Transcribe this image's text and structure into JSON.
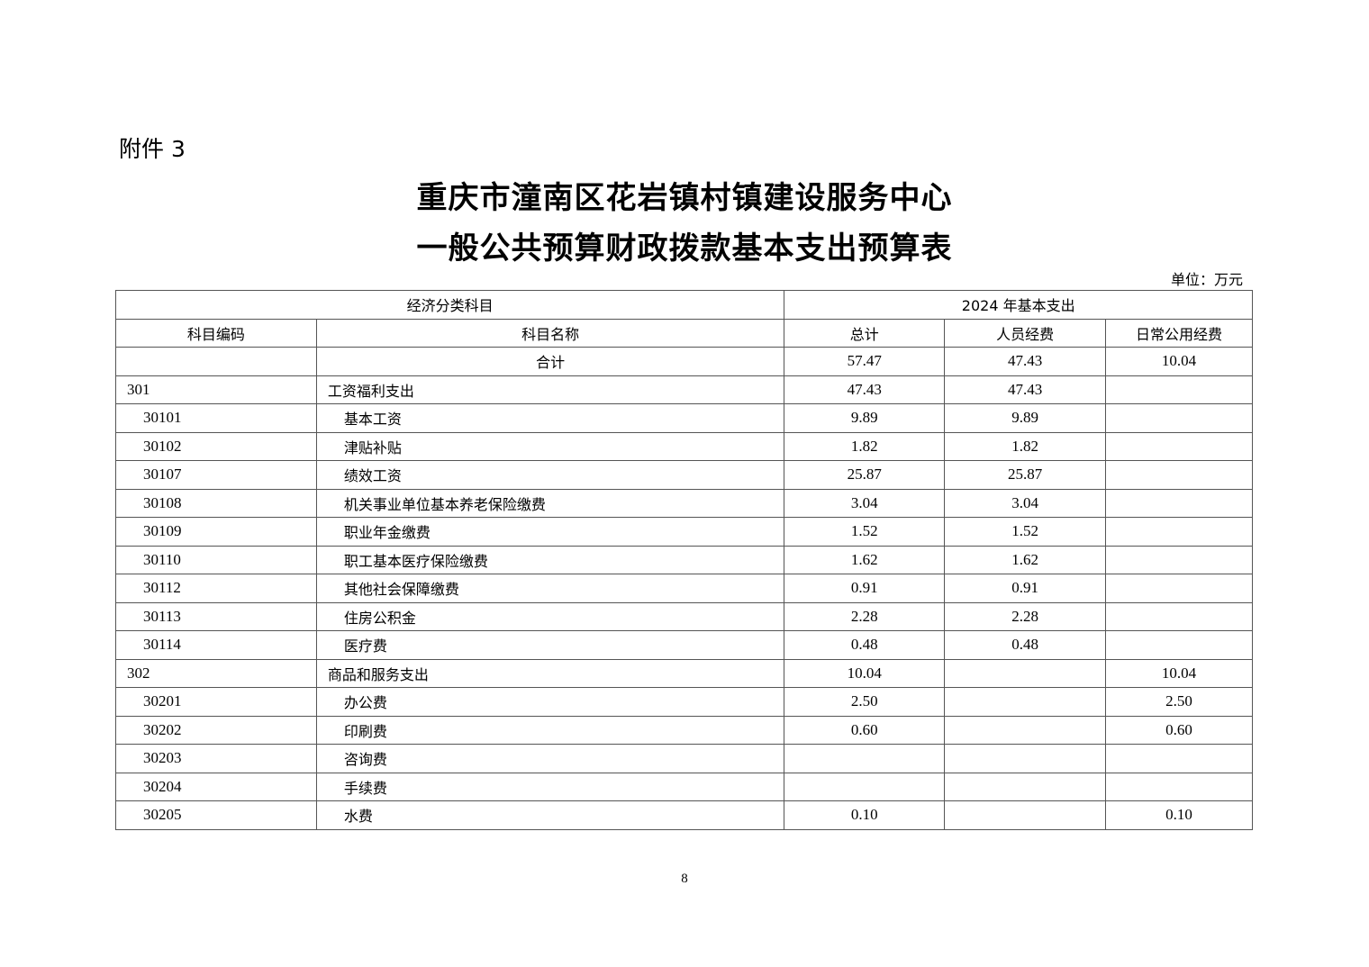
{
  "attachment_label": "附件 3",
  "title_line1": "重庆市潼南区花岩镇村镇建设服务中心",
  "title_line2": "一般公共预算财政拨款基本支出预算表",
  "unit": "单位：万元",
  "table": {
    "group_headers": [
      "经济分类科目",
      "2024 年基本支出"
    ],
    "headers": [
      "科目编码",
      "科目名称",
      "总计",
      "人员经费",
      "日常公用经费"
    ],
    "total_row": {
      "code": "",
      "name": "合计",
      "total": "57.47",
      "personnel": "47.43",
      "public": "10.04"
    },
    "rows": [
      {
        "level": 1,
        "code": "301",
        "name": "工资福利支出",
        "total": "47.43",
        "personnel": "47.43",
        "public": ""
      },
      {
        "level": 2,
        "code": "30101",
        "name": "基本工资",
        "total": "9.89",
        "personnel": "9.89",
        "public": ""
      },
      {
        "level": 2,
        "code": "30102",
        "name": "津贴补贴",
        "total": "1.82",
        "personnel": "1.82",
        "public": ""
      },
      {
        "level": 2,
        "code": "30107",
        "name": "绩效工资",
        "total": "25.87",
        "personnel": "25.87",
        "public": ""
      },
      {
        "level": 2,
        "code": "30108",
        "name": "机关事业单位基本养老保险缴费",
        "total": "3.04",
        "personnel": "3.04",
        "public": ""
      },
      {
        "level": 2,
        "code": "30109",
        "name": "职业年金缴费",
        "total": "1.52",
        "personnel": "1.52",
        "public": ""
      },
      {
        "level": 2,
        "code": "30110",
        "name": "职工基本医疗保险缴费",
        "total": "1.62",
        "personnel": "1.62",
        "public": ""
      },
      {
        "level": 2,
        "code": "30112",
        "name": "其他社会保障缴费",
        "total": "0.91",
        "personnel": "0.91",
        "public": ""
      },
      {
        "level": 2,
        "code": "30113",
        "name": "住房公积金",
        "total": "2.28",
        "personnel": "2.28",
        "public": ""
      },
      {
        "level": 2,
        "code": "30114",
        "name": "医疗费",
        "total": "0.48",
        "personnel": "0.48",
        "public": ""
      },
      {
        "level": 1,
        "code": "302",
        "name": "商品和服务支出",
        "total": "10.04",
        "personnel": "",
        "public": "10.04"
      },
      {
        "level": 2,
        "code": "30201",
        "name": "办公费",
        "total": "2.50",
        "personnel": "",
        "public": "2.50"
      },
      {
        "level": 2,
        "code": "30202",
        "name": "印刷费",
        "total": "0.60",
        "personnel": "",
        "public": "0.60"
      },
      {
        "level": 2,
        "code": "30203",
        "name": "咨询费",
        "total": "",
        "personnel": "",
        "public": ""
      },
      {
        "level": 2,
        "code": "30204",
        "name": "手续费",
        "total": "",
        "personnel": "",
        "public": ""
      },
      {
        "level": 2,
        "code": "30205",
        "name": "水费",
        "total": "0.10",
        "personnel": "",
        "public": "0.10"
      }
    ]
  },
  "page_number": "8"
}
